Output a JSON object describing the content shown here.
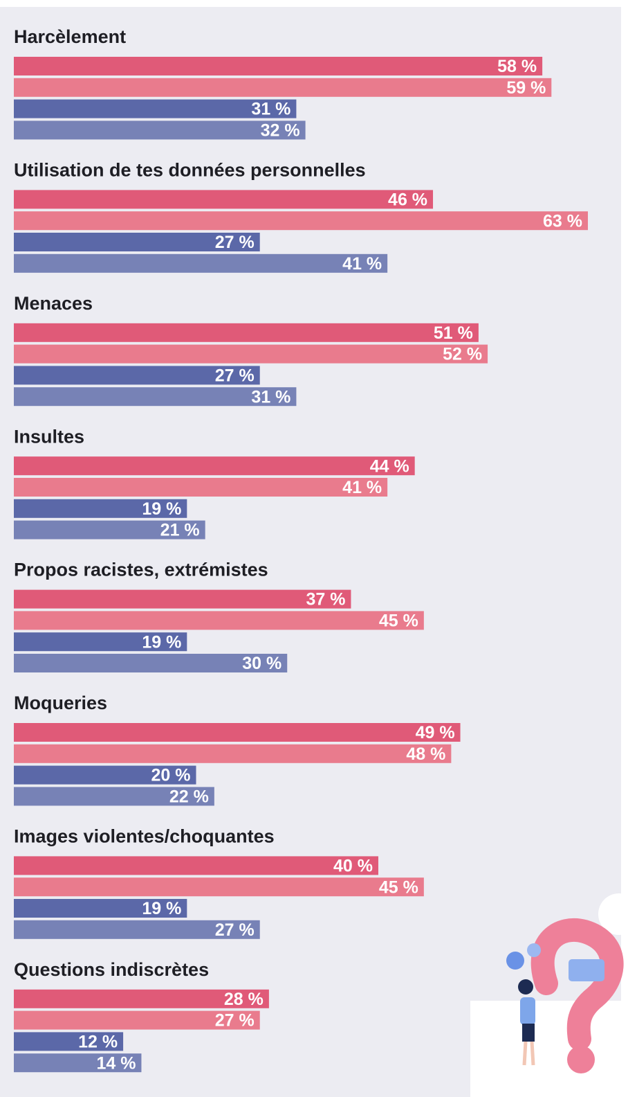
{
  "chart_data": {
    "type": "bar",
    "orientation": "horizontal",
    "categories": [
      "Harcèlement",
      "Utilisation de tes données personnelles",
      "Menaces",
      "Insultes",
      "Propos racistes, extrémistes",
      "Moqueries",
      "Images violentes/choquantes",
      "Questions indiscrètes"
    ],
    "series": [
      {
        "color": "#e05a78",
        "values": [
          58,
          46,
          51,
          44,
          37,
          49,
          40,
          28
        ],
        "value_labels": [
          "58 %",
          "46 %",
          "51 %",
          "44 %",
          "37 %",
          "49 %",
          "40 %",
          "28 %"
        ]
      },
      {
        "color": "#e97b8d",
        "values": [
          59,
          63,
          52,
          41,
          45,
          48,
          45,
          27
        ],
        "value_labels": [
          "59 %",
          "63 %",
          "52 %",
          "41 %",
          "45 %",
          "48 %",
          "45 %",
          "27 %"
        ]
      },
      {
        "color": "#5b68a8",
        "values": [
          31,
          27,
          27,
          19,
          19,
          20,
          19,
          12
        ],
        "value_labels": [
          "31 %",
          "27 %",
          "27 %",
          "19 %",
          "19 %",
          "20 %",
          "19 %",
          "12 %"
        ]
      },
      {
        "color": "#7782b6",
        "values": [
          32,
          41,
          31,
          21,
          30,
          22,
          27,
          14
        ],
        "value_labels": [
          "32 %",
          "41 %",
          "31 %",
          "21 %",
          "30 %",
          "22 %",
          "27 %",
          "14 %"
        ]
      }
    ]
  }
}
